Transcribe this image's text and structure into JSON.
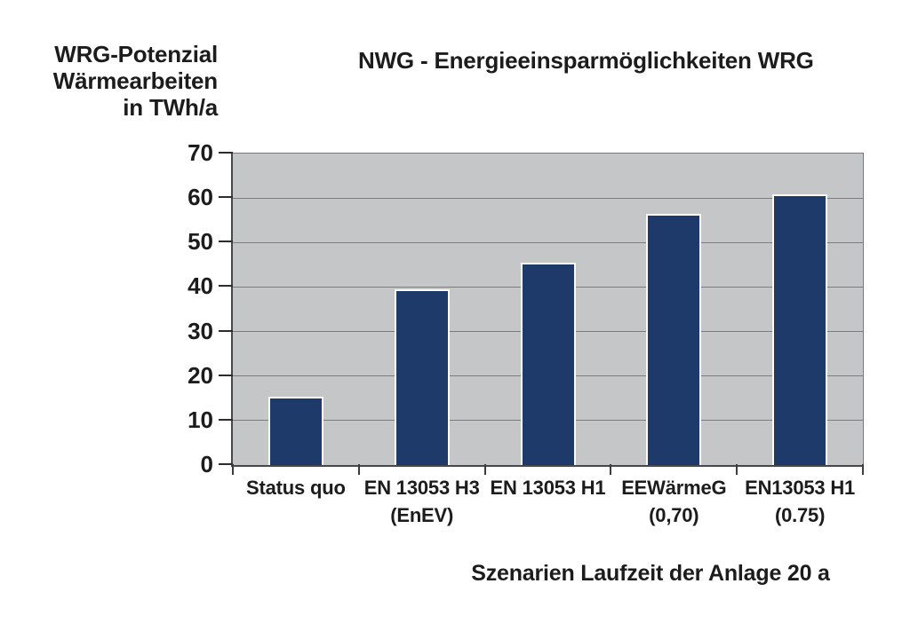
{
  "header": {
    "y_axis_title_lines": [
      "WRG-Potenzial",
      "Wärmearbeiten",
      "in TWh/a"
    ]
  },
  "chart_data": {
    "type": "bar",
    "title": "NWG - Energieeinsparmöglichkeiten WRG",
    "ylabel": "WRG-Potenzial Wärmearbeiten in TWh/a",
    "xlabel": "Szenarien Laufzeit der Anlage 20 a",
    "categories": [
      [
        "Status quo"
      ],
      [
        "EN 13053 H3",
        "(EnEV)"
      ],
      [
        "EN 13053 H1"
      ],
      [
        "EEWärmeG",
        "(0,70)"
      ],
      [
        "EN13053 H1",
        "(0.75)"
      ]
    ],
    "values": [
      15,
      39,
      45,
      56,
      60.5
    ],
    "ylim": [
      0,
      70
    ],
    "yticks": [
      0,
      10,
      20,
      30,
      40,
      50,
      60,
      70
    ],
    "grid": true,
    "legend": "none",
    "bar_color": "#1e3a6a",
    "bar_edge_color": "#fafaf7",
    "plot_bg_color": "#c5c6c8",
    "gridline_color": "#7b7c80"
  }
}
